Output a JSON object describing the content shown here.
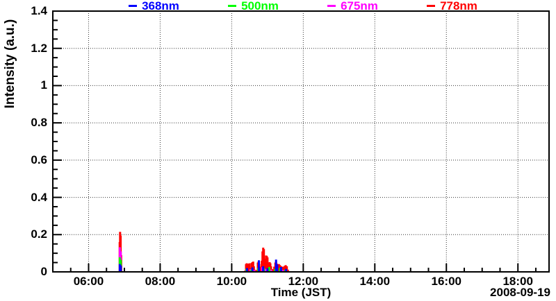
{
  "page": {
    "background": "#ffffff",
    "text_color": "#000000"
  },
  "chart_data": {
    "type": "line",
    "title": "",
    "xlabel": "Time (JST)",
    "ylabel": "Intensity (a.u.)",
    "date_label": "2008-09-19",
    "grid": "dotted",
    "legend_position": "top",
    "x_ticks": [
      "06:00",
      "08:00",
      "10:00",
      "12:00",
      "14:00",
      "16:00",
      "18:00"
    ],
    "x_tick_hours": [
      6,
      8,
      10,
      12,
      14,
      16,
      18
    ],
    "x_range_hours": [
      5.0,
      18.87
    ],
    "x_minor_step_hours": 0.5,
    "y_ticks": [
      "0",
      "0.2",
      "0.4",
      "0.6",
      "0.8",
      "1",
      "1.2",
      "1.4"
    ],
    "y_tick_values": [
      0,
      0.2,
      0.4,
      0.6,
      0.8,
      1,
      1.2,
      1.4
    ],
    "ylim": [
      0,
      1.4
    ],
    "y_minor_step": 0.05,
    "series": [
      {
        "name": "368nm",
        "color": "#0000ff",
        "segments": [
          [
            [
              6.872,
              0.042
            ],
            [
              6.9,
              0.034
            ]
          ],
          [
            [
              10.43,
              0.02
            ],
            [
              10.58,
              0.024
            ],
            [
              10.76,
              0.062
            ],
            [
              10.88,
              0.03
            ],
            [
              11.0,
              0.02
            ],
            [
              11.24,
              0.066
            ],
            [
              11.27,
              0.04
            ],
            [
              11.38,
              0.026
            ],
            [
              11.52,
              0.016
            ]
          ]
        ]
      },
      {
        "name": "500nm",
        "color": "#00ff00",
        "segments": [
          [
            [
              6.872,
              0.078
            ],
            [
              6.9,
              0.064
            ]
          ],
          [
            [
              10.41,
              0.016
            ],
            [
              10.55,
              0.012
            ],
            [
              10.74,
              0.022
            ],
            [
              10.9,
              0.02
            ],
            [
              11.05,
              0.026
            ],
            [
              11.21,
              0.016
            ],
            [
              11.35,
              0.022
            ],
            [
              11.5,
              0.012
            ]
          ]
        ]
      },
      {
        "name": "675nm",
        "color": "#ff00ff",
        "segments": [
          [
            [
              6.872,
              0.132
            ],
            [
              6.9,
              0.11
            ]
          ],
          [
            [
              10.4,
              0.012
            ],
            [
              10.52,
              0.015
            ],
            [
              10.63,
              0.01
            ],
            [
              10.85,
              0.025
            ],
            [
              10.95,
              0.016
            ],
            [
              11.1,
              0.012
            ],
            [
              11.26,
              0.015
            ],
            [
              11.43,
              0.01
            ]
          ]
        ]
      },
      {
        "name": "778nm",
        "color": "#ff0000",
        "segments": [
          [
            [
              6.868,
              0.16
            ],
            [
              6.88,
              0.215
            ],
            [
              6.895,
              0.195
            ],
            [
              6.912,
              0.09
            ]
          ],
          [
            [
              10.38,
              0.008
            ],
            [
              10.4,
              0.042
            ],
            [
              10.42,
              0.046
            ],
            [
              10.44,
              0.04
            ],
            [
              10.46,
              0.03
            ],
            [
              10.48,
              0.044
            ],
            [
              10.5,
              0.046
            ],
            [
              10.52,
              0.02
            ],
            [
              10.56,
              0.048
            ],
            [
              10.58,
              0.052
            ],
            [
              10.6,
              0.055
            ],
            [
              10.62,
              0.03
            ],
            [
              10.64,
              0.012
            ],
            [
              10.7,
              0.01
            ],
            [
              10.73,
              0.05
            ],
            [
              10.75,
              0.056
            ],
            [
              10.77,
              0.042
            ],
            [
              10.79,
              0.015
            ],
            [
              10.82,
              0.028
            ],
            [
              10.84,
              0.06
            ],
            [
              10.86,
              0.11
            ],
            [
              10.88,
              0.13
            ],
            [
              10.9,
              0.122
            ],
            [
              10.92,
              0.07
            ],
            [
              10.94,
              0.05
            ],
            [
              10.96,
              0.088
            ],
            [
              10.98,
              0.086
            ],
            [
              11.0,
              0.078
            ],
            [
              11.02,
              0.045
            ],
            [
              11.04,
              0.048
            ],
            [
              11.06,
              0.052
            ],
            [
              11.08,
              0.046
            ],
            [
              11.1,
              0.03
            ],
            [
              11.13,
              0.015
            ],
            [
              11.16,
              0.012
            ],
            [
              11.19,
              0.028
            ],
            [
              11.22,
              0.05
            ],
            [
              11.24,
              0.056
            ],
            [
              11.26,
              0.044
            ],
            [
              11.29,
              0.038
            ],
            [
              11.32,
              0.042
            ],
            [
              11.35,
              0.036
            ],
            [
              11.38,
              0.03
            ],
            [
              11.42,
              0.028
            ],
            [
              11.45,
              0.022
            ],
            [
              11.48,
              0.032
            ],
            [
              11.51,
              0.036
            ],
            [
              11.54,
              0.03
            ],
            [
              11.57,
              0.012
            ]
          ]
        ]
      }
    ]
  }
}
